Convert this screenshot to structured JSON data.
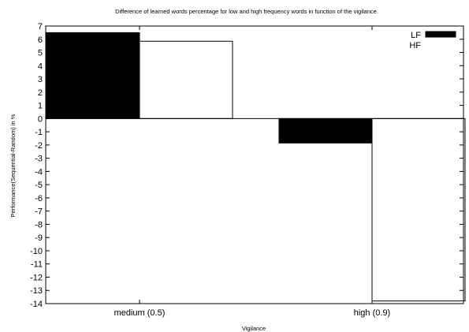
{
  "chart_data": {
    "type": "bar",
    "title": "Difference of learned words percentage for low and high frequency words in function of the vigilance.",
    "xlabel": "Vigilance",
    "ylabel": "Performance(Sequential-Random) in %",
    "categories": [
      "medium (0.5)",
      "high (0.9)"
    ],
    "series": [
      {
        "name": "LF",
        "values": [
          6.5,
          -1.85
        ],
        "fill": "#000000"
      },
      {
        "name": "HF",
        "values": [
          5.85,
          -13.8
        ],
        "fill": "#ffffff"
      }
    ],
    "ylim": [
      -14,
      7
    ],
    "yticks": [
      "7",
      "6",
      "5",
      "4",
      "3",
      "2",
      "1",
      "0",
      "-1",
      "-2",
      "-3",
      "-4",
      "-5",
      "-6",
      "-7",
      "-8",
      "-9",
      "-10",
      "-11",
      "-12",
      "-13",
      "-14"
    ],
    "grid": false,
    "legend_position": "top-right"
  }
}
